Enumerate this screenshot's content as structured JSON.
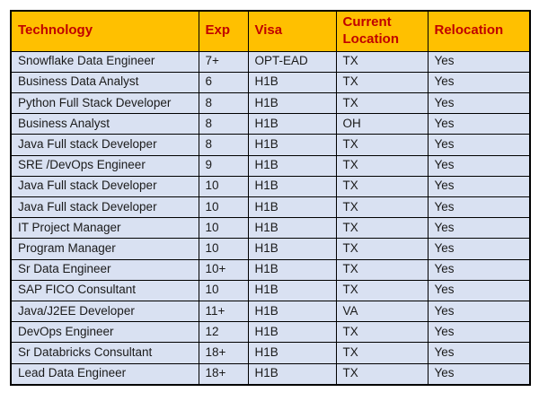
{
  "page": {
    "background": "#ffffff"
  },
  "table": {
    "header": {
      "bg": "#FFC000",
      "text_color": "#C00000",
      "columns": [
        "Technology",
        "Exp",
        "Visa",
        "Current Location",
        "Relocation"
      ]
    },
    "body": {
      "bg": "#D9E1F2",
      "text_color": "#1a1a1a",
      "border_color": "#000000"
    },
    "rows": [
      [
        "Snowflake Data Engineer",
        "7+",
        "OPT-EAD",
        "TX",
        "Yes"
      ],
      [
        "Business Data Analyst",
        "6",
        "H1B",
        "TX",
        "Yes"
      ],
      [
        "Python Full Stack Developer",
        "8",
        "H1B",
        "TX",
        "Yes"
      ],
      [
        "Business Analyst",
        "8",
        "H1B",
        "OH",
        "Yes"
      ],
      [
        "Java Full stack Developer",
        "8",
        "H1B",
        "TX",
        "Yes"
      ],
      [
        "SRE /DevOps Engineer",
        "9",
        "H1B",
        "TX",
        "Yes"
      ],
      [
        "Java Full stack Developer",
        "10",
        "H1B",
        "TX",
        "Yes"
      ],
      [
        "Java Full stack Developer",
        "10",
        "H1B",
        "TX",
        "Yes"
      ],
      [
        "IT Project Manager",
        "10",
        "H1B",
        "TX",
        "Yes"
      ],
      [
        "Program Manager",
        "10",
        "H1B",
        "TX",
        "Yes"
      ],
      [
        "Sr Data Engineer",
        "10+",
        "H1B",
        "TX",
        "Yes"
      ],
      [
        "SAP FICO Consultant",
        "10",
        "H1B",
        "TX",
        "Yes"
      ],
      [
        "Java/J2EE Developer",
        "11+",
        "H1B",
        "VA",
        "Yes"
      ],
      [
        "DevOps Engineer",
        "12",
        "H1B",
        "TX",
        "Yes"
      ],
      [
        "Sr Databricks Consultant",
        "18+",
        "H1B",
        "TX",
        "Yes"
      ],
      [
        "Lead Data Engineer",
        "18+",
        "H1B",
        "TX",
        "Yes"
      ]
    ]
  }
}
